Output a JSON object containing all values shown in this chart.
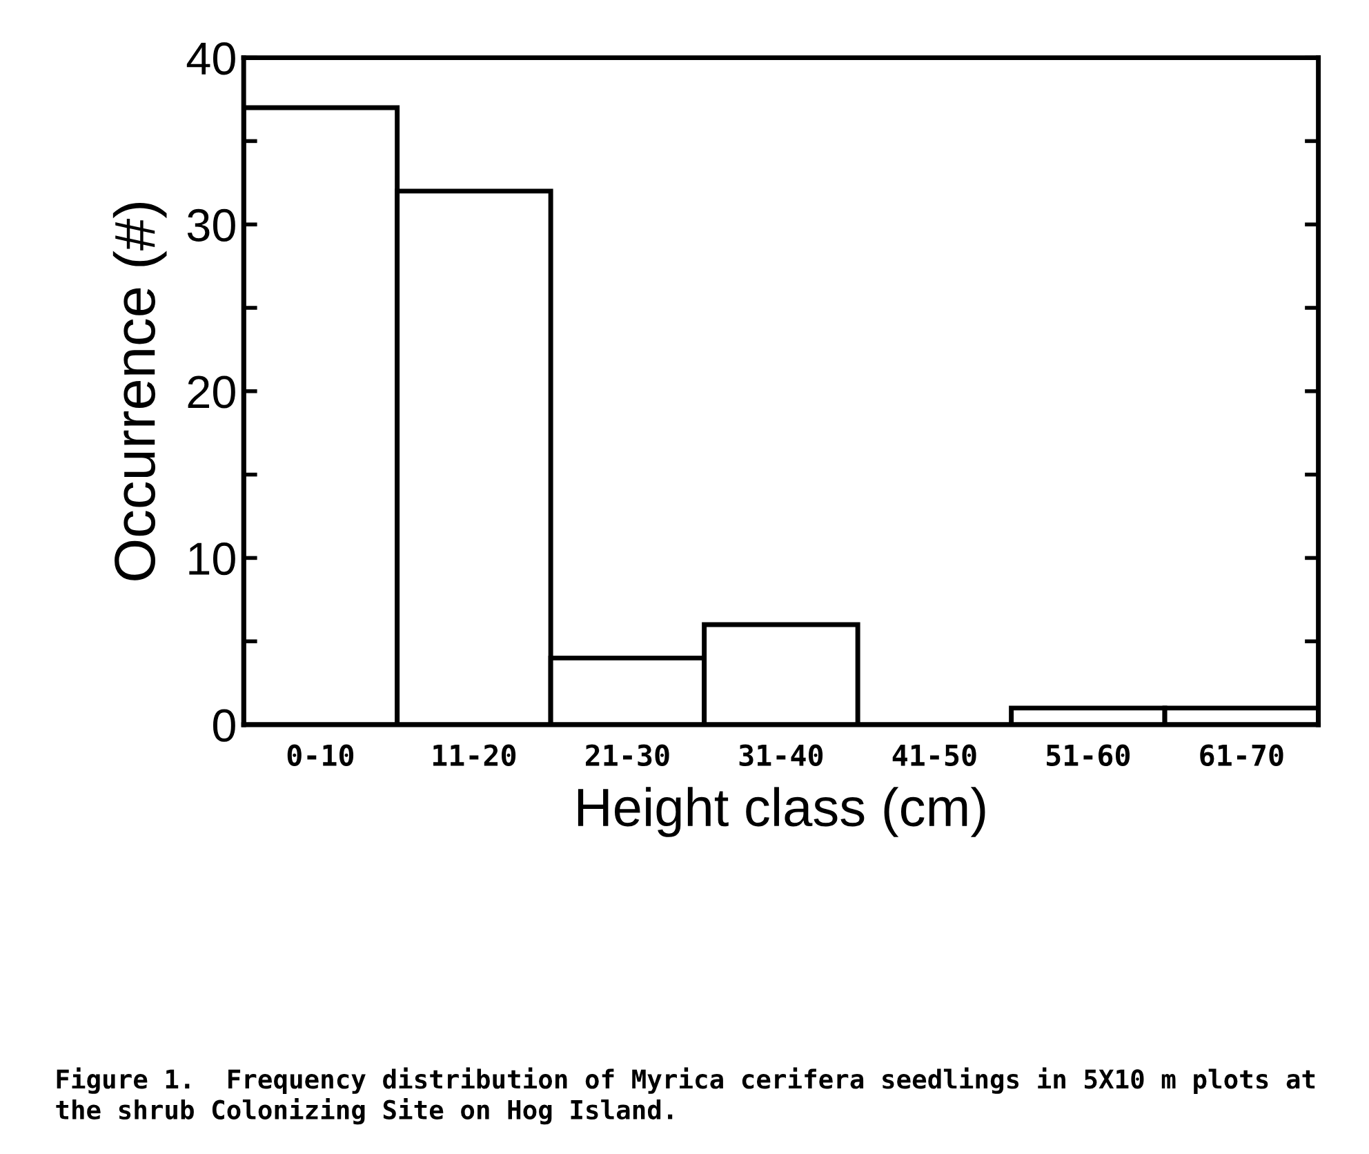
{
  "chart_data": {
    "type": "bar",
    "xlabel": "Height class (cm)",
    "ylabel": "Occurrence (#)",
    "categories": [
      "0-10",
      "11-20",
      "21-30",
      "31-40",
      "41-50",
      "51-60",
      "61-70"
    ],
    "values": [
      37,
      32,
      4,
      6,
      0,
      1,
      1
    ],
    "color": "#ffffff",
    "ylim": [
      0,
      40
    ],
    "yticks": [
      0,
      {
        "value": 5,
        "label": null
      },
      10,
      {
        "value": 15,
        "label": null
      },
      20,
      {
        "value": 25,
        "label": null
      },
      30,
      {
        "value": 35,
        "label": null
      },
      40
    ],
    "grid": false,
    "annotations": [
      "Figure 1.  Frequency distribution of Myrica cerifera seedlings in 5X10 m plots at the shrub Colonizing Site on Hog Island."
    ]
  }
}
